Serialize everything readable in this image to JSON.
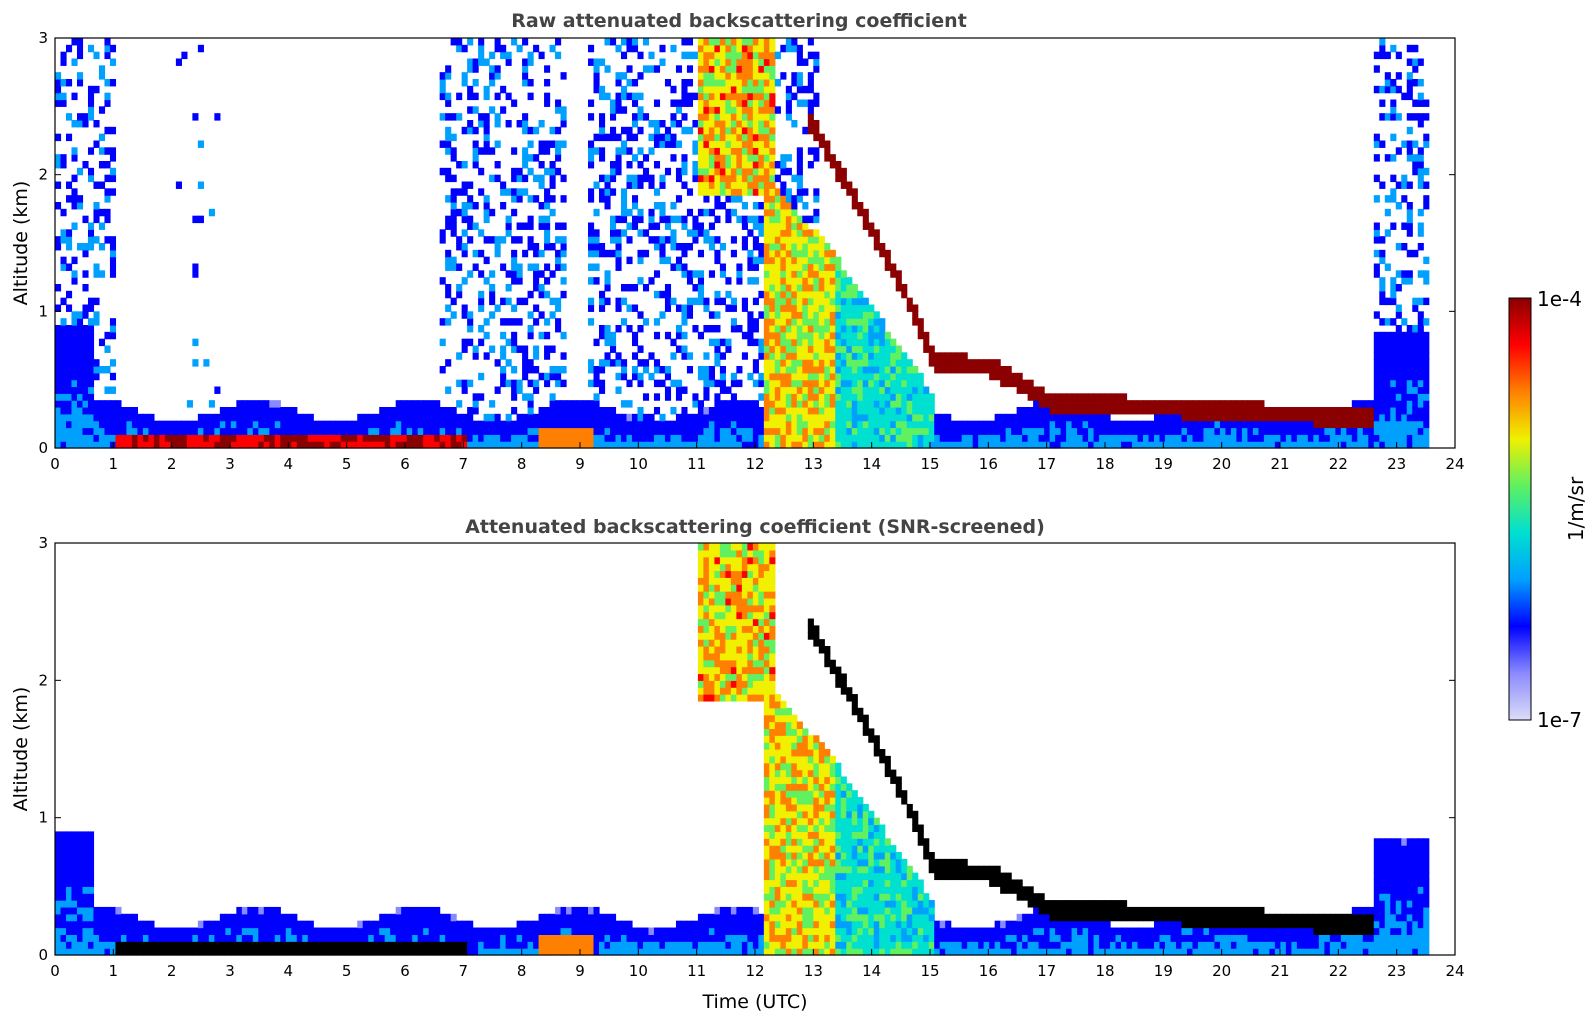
{
  "chart_data": [
    {
      "type": "heatmap",
      "title": "Raw attenuated backscattering coefficient",
      "xlabel": "",
      "ylabel": "Altitude (km)",
      "xlim": [
        0,
        24
      ],
      "ylim": [
        0,
        3
      ],
      "x_ticks": [
        "0",
        "1",
        "2",
        "3",
        "4",
        "5",
        "6",
        "7",
        "8",
        "9",
        "10",
        "11",
        "12",
        "13",
        "14",
        "15",
        "16",
        "17",
        "18",
        "19",
        "20",
        "21",
        "22",
        "23",
        "24"
      ],
      "y_ticks": [
        "0",
        "1",
        "2",
        "3"
      ],
      "data_end_hour": 23.55,
      "features": [
        {
          "name": "boundary-layer aerosol",
          "start": 0,
          "end": 23.55,
          "base_km": 0,
          "top_km": 0.25,
          "level": 0.15
        },
        {
          "name": "near-surface strong layer",
          "start": 1.0,
          "end": 7.0,
          "base_km": 0.03,
          "top_km": 0.09,
          "level": 0.95
        },
        {
          "name": "precipitation shaft",
          "start": 12.1,
          "end": 12.9,
          "base_km": 0,
          "top_km": 2.0,
          "level": 0.7
        },
        {
          "name": "descending cloud base",
          "start": 12.9,
          "end": 22.6,
          "base_km": 0.05,
          "top_km": 2.3,
          "level": 1.0
        }
      ]
    },
    {
      "type": "heatmap",
      "title": "Attenuated backscattering coefficient (SNR-screened)",
      "xlabel": "Time (UTC)",
      "ylabel": "Altitude (km)",
      "xlim": [
        0,
        24
      ],
      "ylim": [
        0,
        3
      ],
      "x_ticks": [
        "0",
        "1",
        "2",
        "3",
        "4",
        "5",
        "6",
        "7",
        "8",
        "9",
        "10",
        "11",
        "12",
        "13",
        "14",
        "15",
        "16",
        "17",
        "18",
        "19",
        "20",
        "21",
        "22",
        "23",
        "24"
      ],
      "y_ticks": [
        "0",
        "1",
        "2",
        "3"
      ],
      "data_end_hour": 23.55,
      "features": [
        {
          "name": "boundary-layer aerosol",
          "start": 0,
          "end": 23.55,
          "base_km": 0,
          "top_km": 0.3,
          "level": 0.15
        },
        {
          "name": "near-surface strong layer",
          "start": 1.0,
          "end": 7.0,
          "base_km": 0.03,
          "top_km": 0.09,
          "level": 1.05
        },
        {
          "name": "precipitation shaft",
          "start": 12.1,
          "end": 12.9,
          "base_km": 0,
          "top_km": 2.0,
          "level": 0.7
        },
        {
          "name": "descending cloud base",
          "start": 12.9,
          "end": 22.6,
          "base_km": 0.05,
          "top_km": 2.3,
          "level": 1.05
        }
      ]
    }
  ],
  "colorbar": {
    "label": "1/m/sr",
    "max_label": "1e-4",
    "min_label": "1e-7",
    "colors": [
      "#dcdcf8",
      "#8a8aff",
      "#0000ff",
      "#00a0ff",
      "#00e0d0",
      "#60f060",
      "#f0f000",
      "#ff8000",
      "#ff0000",
      "#8b0000"
    ]
  }
}
